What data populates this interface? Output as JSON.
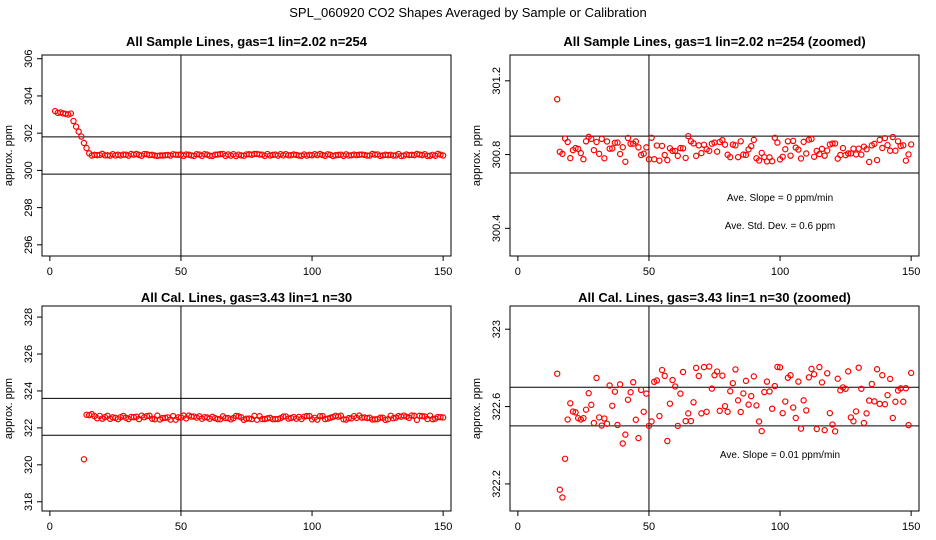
{
  "page": {
    "title": "SPL_060920  CO2 Shapes Averaged by Sample or Calibration"
  },
  "colors": {
    "points": "#ff0000",
    "axes": "#000000",
    "lines": "#000000"
  },
  "chart_data": [
    {
      "type": "scatter",
      "title": "All Sample Lines, gas=1 lin=2.02 n=254",
      "xlabel": "",
      "ylabel": "approx. ppm",
      "xlim": [
        -3,
        153
      ],
      "ylim": [
        295.4,
        306.2
      ],
      "xticks": [
        0,
        50,
        100,
        150
      ],
      "yticks": [
        296,
        298,
        300,
        302,
        304,
        306
      ],
      "vline": 50,
      "hlines": [
        299.8,
        301.8
      ],
      "annotations": [],
      "series": [
        {
          "x": [],
          "y": []
        }
      ]
    },
    {
      "type": "scatter",
      "title": "All Sample Lines, gas=1 lin=2.02 n=254 (zoomed)",
      "xlabel": "",
      "ylabel": "approx. ppm",
      "xlim": [
        -3,
        153
      ],
      "ylim": [
        300.25,
        301.34
      ],
      "xticks": [
        0,
        50,
        100,
        150
      ],
      "yticks": [
        300.4,
        300.8,
        301.2
      ],
      "vline": 50,
      "hlines": [
        300.7,
        300.9
      ],
      "annotations": [
        "Ave. Slope =  0  ppm/min",
        "Ave. Std. Dev. = 0.6  ppm"
      ],
      "series": [
        {
          "x": [],
          "y": []
        }
      ]
    },
    {
      "type": "scatter",
      "title": "All Cal. Lines, gas=3.43 lin=1 n=30",
      "xlabel": "",
      "ylabel": "approx. ppm",
      "xlim": [
        -3,
        153
      ],
      "ylim": [
        317.5,
        328.6
      ],
      "xticks": [
        0,
        50,
        100,
        150
      ],
      "yticks": [
        318,
        320,
        322,
        324,
        326,
        328
      ],
      "vline": 50,
      "hlines": [
        321.6,
        323.6
      ],
      "annotations": [],
      "series": [
        {
          "x": [],
          "y": []
        }
      ]
    },
    {
      "type": "scatter",
      "title": "All Cal. Lines, gas=3.43 lin=1 n=30 (zoomed)",
      "xlabel": "",
      "ylabel": "approx. ppm",
      "xlim": [
        -3,
        153
      ],
      "ylim": [
        322.06,
        323.12
      ],
      "xticks": [
        0,
        50,
        100,
        150
      ],
      "yticks": [
        322.2,
        322.6,
        323.0
      ],
      "vline": 50,
      "hlines": [
        322.5,
        322.7
      ],
      "annotations": [
        "Ave. Slope =  0.01  ppm/min"
      ],
      "series": [
        {
          "x": [],
          "y": []
        }
      ]
    }
  ]
}
